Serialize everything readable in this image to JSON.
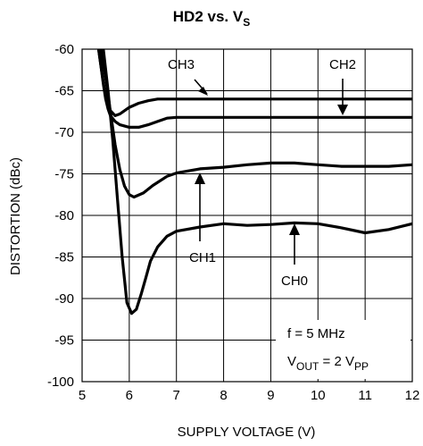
{
  "chart_data": {
    "type": "line",
    "title": {
      "main": "HD2 vs. V",
      "subscript": "S"
    },
    "xlabel": "SUPPLY VOLTAGE (V)",
    "ylabel": "DISTORTION (dBc)",
    "xlim": [
      5,
      12
    ],
    "ylim": [
      -100,
      -60
    ],
    "grid": true,
    "x_ticks": [
      5,
      6,
      7,
      8,
      9,
      10,
      11,
      12
    ],
    "x_tick_labels": [
      "5",
      "6",
      "7",
      "8",
      "9",
      "10",
      "11",
      "12"
    ],
    "y_ticks": [
      -60,
      -65,
      -70,
      -75,
      -80,
      -85,
      -90,
      -95,
      -100
    ],
    "y_tick_labels": [
      "-60",
      "-65",
      "-70",
      "-75",
      "-80",
      "-85",
      "-90",
      "-95",
      "-100"
    ],
    "series": [
      {
        "name": "CH3",
        "x": [
          5.35,
          5.4,
          5.45,
          5.5,
          5.55,
          5.6,
          5.7,
          5.8,
          6.0,
          6.2,
          6.4,
          6.6,
          7,
          8,
          9,
          10,
          11,
          12
        ],
        "y": [
          -60,
          -62,
          -64,
          -65.7,
          -66.6,
          -67.4,
          -68.0,
          -67.8,
          -67.0,
          -66.5,
          -66.2,
          -66.0,
          -66.0,
          -66.0,
          -66.0,
          -66.0,
          -66.0,
          -66.0
        ]
      },
      {
        "name": "CH2",
        "x": [
          5.35,
          5.4,
          5.45,
          5.5,
          5.55,
          5.6,
          5.7,
          5.8,
          6.0,
          6.2,
          6.4,
          6.6,
          6.8,
          7,
          8,
          9,
          10,
          11,
          12
        ],
        "y": [
          -60,
          -62,
          -64.2,
          -66.0,
          -67.2,
          -68.0,
          -68.7,
          -69.1,
          -69.4,
          -69.4,
          -69.1,
          -68.7,
          -68.3,
          -68.2,
          -68.2,
          -68.2,
          -68.2,
          -68.2,
          -68.2
        ]
      },
      {
        "name": "CH1",
        "x": [
          5.4,
          5.5,
          5.6,
          5.7,
          5.8,
          5.9,
          6.0,
          6.1,
          6.3,
          6.5,
          6.8,
          7.0,
          7.5,
          8.0,
          8.5,
          9.0,
          9.5,
          10.0,
          10.5,
          11.0,
          11.5,
          12.0
        ],
        "y": [
          -60,
          -63.5,
          -67.5,
          -71.5,
          -74.5,
          -76.5,
          -77.5,
          -77.8,
          -77.3,
          -76.4,
          -75.3,
          -74.9,
          -74.4,
          -74.2,
          -73.9,
          -73.7,
          -73.7,
          -73.9,
          -74.1,
          -74.1,
          -74.1,
          -73.9
        ]
      },
      {
        "name": "CH0",
        "x": [
          5.45,
          5.55,
          5.65,
          5.75,
          5.85,
          5.95,
          6.05,
          6.15,
          6.25,
          6.35,
          6.45,
          6.6,
          6.8,
          7.0,
          7.5,
          8.0,
          8.5,
          9.0,
          9.5,
          10.0,
          10.5,
          11.0,
          11.5,
          12.0
        ],
        "y": [
          -60,
          -65,
          -71,
          -78,
          -85,
          -90.5,
          -91.8,
          -91.3,
          -89.5,
          -87.5,
          -85.5,
          -83.8,
          -82.5,
          -81.9,
          -81.4,
          -81.0,
          -81.2,
          -81.1,
          -80.9,
          -81.0,
          -81.5,
          -82.1,
          -81.7,
          -81.0
        ]
      }
    ],
    "annotations": {
      "labels": [
        "CH3",
        "CH2",
        "CH1",
        "CH0"
      ],
      "conditions": {
        "freq": "f = 5 MHz",
        "vout_prefix": "V",
        "vout_sub": "OUT",
        "vout_mid": " =  2 V",
        "vout_sub2": "PP"
      }
    }
  }
}
